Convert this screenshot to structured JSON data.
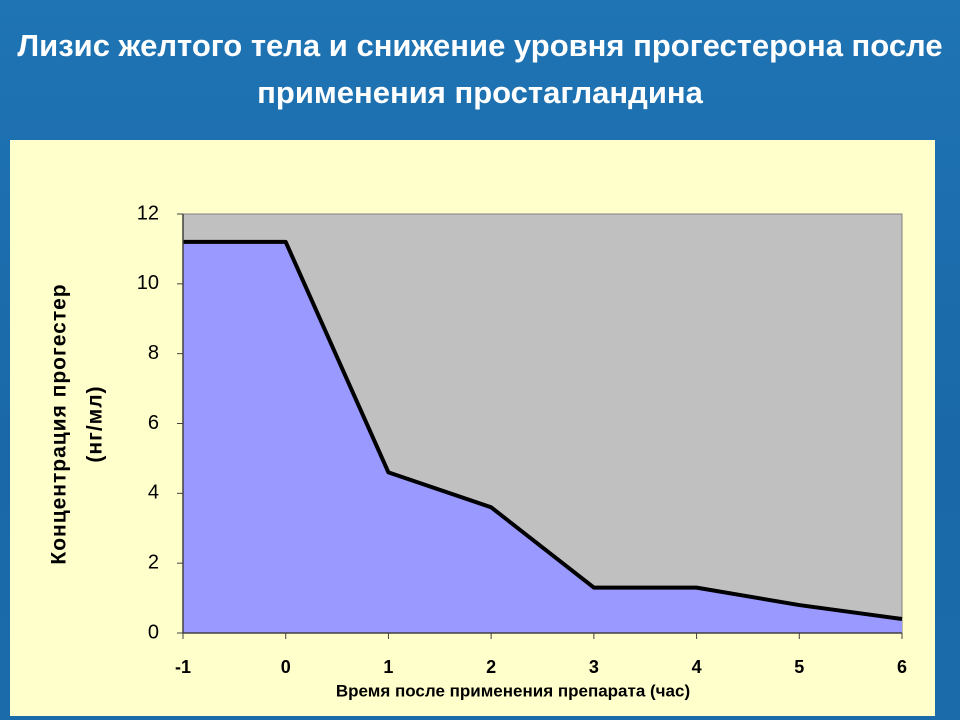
{
  "chart_data": {
    "type": "area",
    "title": "Лизис желтого тела и снижение уровня прогестерона после применения простагландина",
    "ylabel": [
      "Концентрация прогестер",
      "(нг/мл)"
    ],
    "xlabel": "Время после применения препарата (час)",
    "x": [
      -1,
      0,
      1,
      2,
      3,
      4,
      5,
      6
    ],
    "values": [
      11.2,
      11.2,
      4.6,
      3.6,
      1.3,
      1.3,
      0.8,
      0.4
    ],
    "color": "#9999ff",
    "line_color": "#000000",
    "plot_background": "#c0c0c0",
    "xlim": [
      -1,
      6
    ],
    "xticks": [
      -1,
      0,
      1,
      2,
      3,
      4,
      5,
      6
    ],
    "ylim": [
      0,
      12
    ],
    "yticks": [
      0,
      2,
      4,
      6,
      8,
      10,
      12
    ]
  }
}
